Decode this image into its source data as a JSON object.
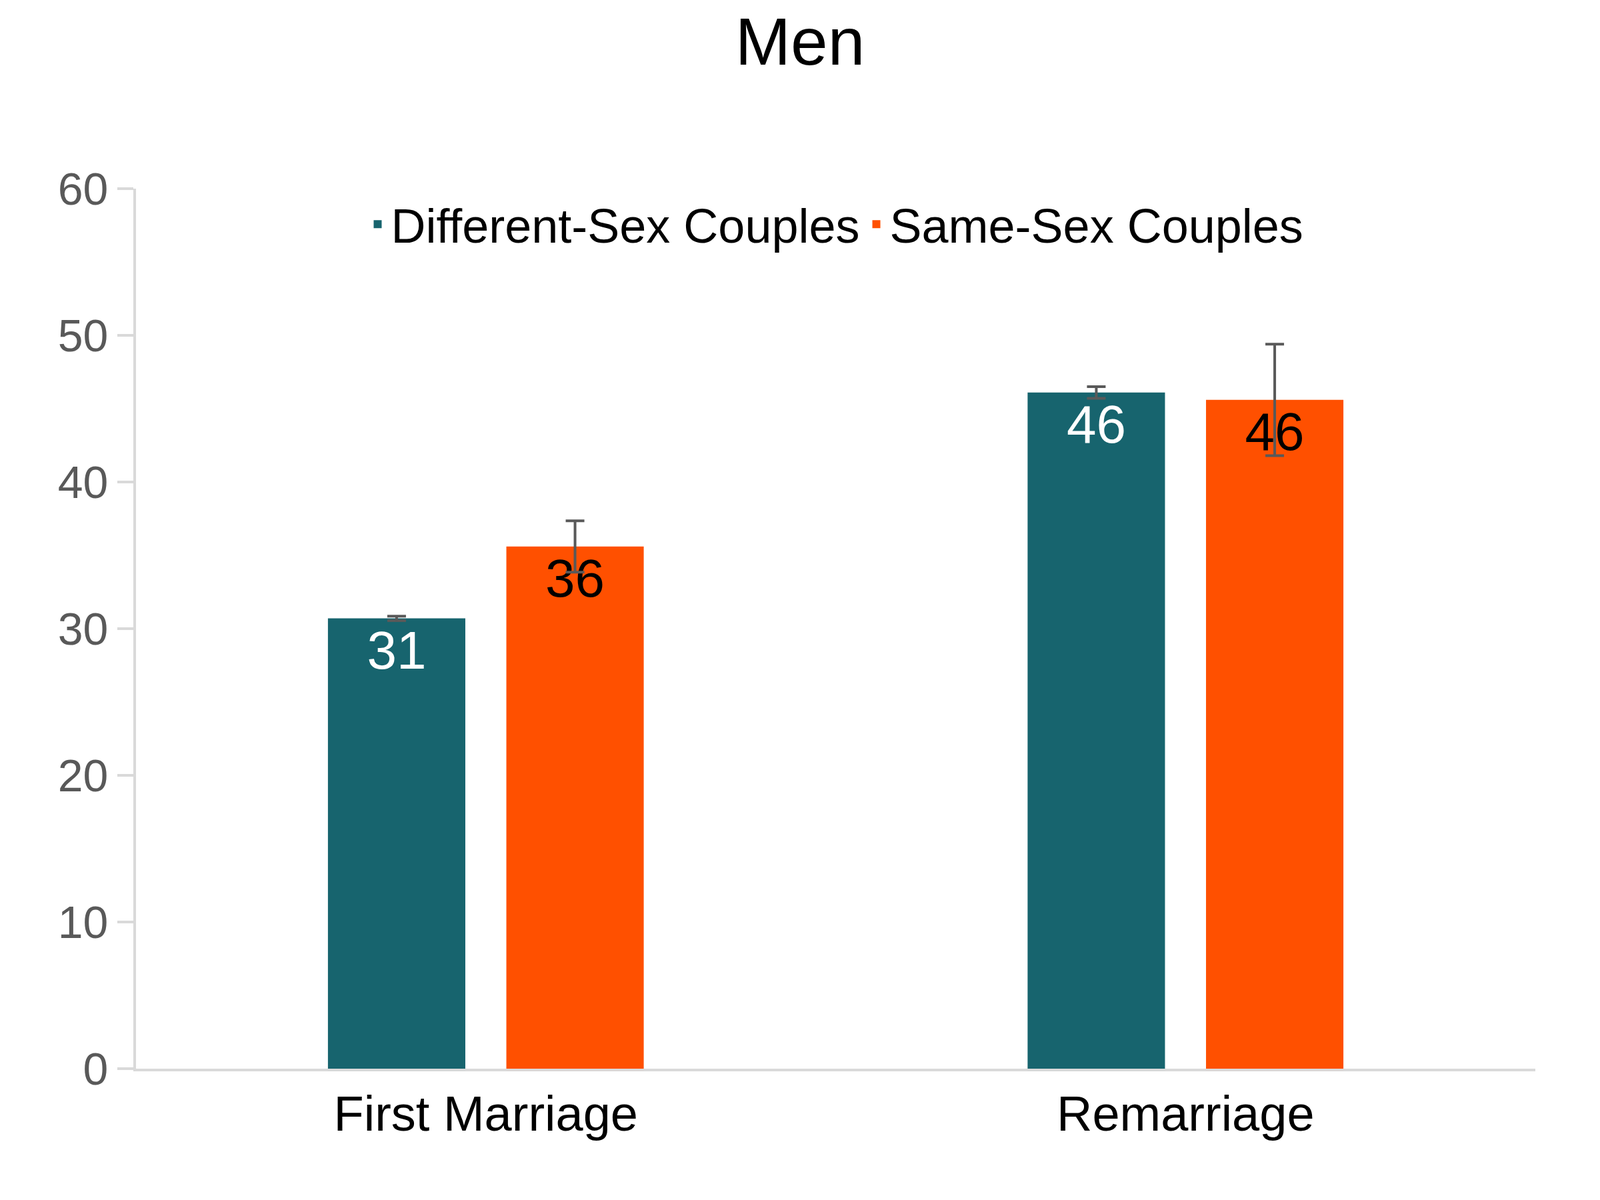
{
  "chart_data": {
    "type": "bar",
    "title": "Men",
    "categories": [
      "First Marriage",
      "Remarriage"
    ],
    "series": [
      {
        "name": "Different-Sex Couples",
        "color": "#17646e",
        "values": [
          30.7,
          46.1
        ],
        "value_labels": [
          "31",
          "46"
        ],
        "errors": [
          0.15,
          0.4
        ]
      },
      {
        "name": "Same-Sex Couples",
        "color": "#ff5000",
        "values": [
          35.6,
          45.6
        ],
        "value_labels": [
          "36",
          "46"
        ],
        "errors": [
          1.75,
          3.8
        ]
      }
    ],
    "ylim": [
      0,
      60
    ],
    "yticks": [
      0,
      10,
      20,
      30,
      40,
      50,
      60
    ],
    "grid": false,
    "legend": "top",
    "data_labels": true
  }
}
